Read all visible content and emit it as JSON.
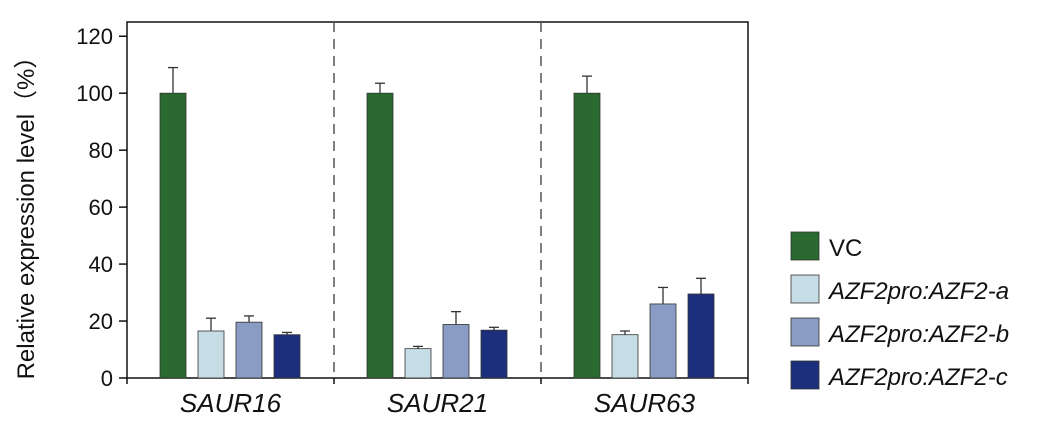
{
  "chart_data": {
    "type": "bar",
    "categories": [
      "SAUR16",
      "SAUR21",
      "SAUR63"
    ],
    "ylabel": "Relative expression level（%）",
    "ylim": [
      0,
      125
    ],
    "yticks": [
      0,
      20,
      40,
      60,
      80,
      100,
      120
    ],
    "grid": false,
    "legend_position": "right",
    "separators": "dashed",
    "series": [
      {
        "name": "VC",
        "color": "#2a6a30",
        "values": [
          100,
          100,
          100
        ],
        "errors": [
          9,
          3.5,
          6
        ]
      },
      {
        "name": "AZF2pro:AZF2-a",
        "color": "#c7dde6",
        "values": [
          16.5,
          10.3,
          15.2
        ],
        "errors": [
          4.5,
          0.8,
          1.3
        ],
        "italic": true
      },
      {
        "name": "AZF2pro:AZF2-b",
        "color": "#8a9bc4",
        "values": [
          19.6,
          18.8,
          26.0
        ],
        "errors": [
          2.2,
          4.5,
          5.8
        ],
        "italic": true
      },
      {
        "name": "AZF2pro:AZF2-c",
        "color": "#1b2f7c",
        "values": [
          15.2,
          16.8,
          29.5
        ],
        "errors": [
          0.8,
          1.0,
          5.5
        ],
        "italic": true
      }
    ]
  }
}
